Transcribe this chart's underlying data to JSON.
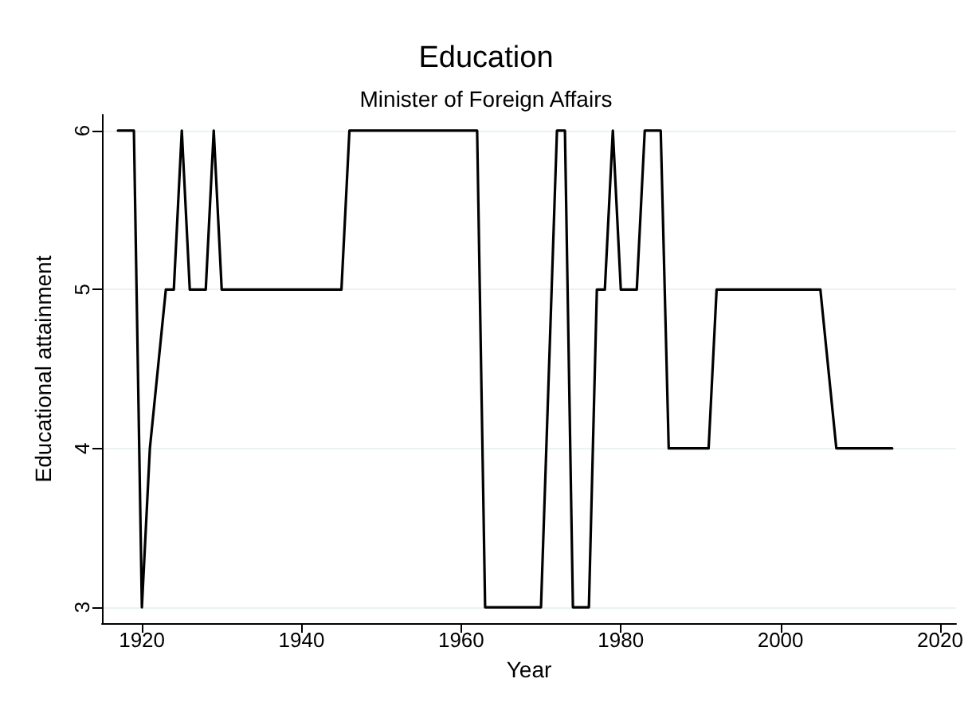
{
  "chart_data": {
    "type": "line",
    "title": "Education",
    "subtitle": "Minister of Foreign Affairs",
    "xlabel": "Year",
    "ylabel": "Educational attainment",
    "x": [
      1917,
      1919,
      1920,
      1921,
      1923,
      1924,
      1925,
      1926,
      1928,
      1929,
      1930,
      1945,
      1946,
      1962,
      1963,
      1970,
      1972,
      1973,
      1974,
      1976,
      1977,
      1978,
      1979,
      1980,
      1982,
      1983,
      1985,
      1986,
      1991,
      1992,
      2005,
      2007,
      2014
    ],
    "series": [
      {
        "color": "#000000",
        "values": [
          6,
          6,
          3,
          4,
          5,
          5,
          6,
          5,
          5,
          6,
          5,
          5,
          6,
          6,
          3,
          3,
          6,
          6,
          3,
          3,
          5,
          5,
          6,
          5,
          5,
          6,
          6,
          4,
          4,
          5,
          5,
          4,
          4
        ]
      }
    ],
    "xlim": [
      1915,
      2022
    ],
    "ylim": [
      2.9,
      6.1
    ],
    "xticks": [
      1920,
      1940,
      1960,
      1980,
      2000,
      2020
    ],
    "yticks": [
      3,
      4,
      5,
      6
    ],
    "grid": "y",
    "marker": "none",
    "line_style": "solid"
  }
}
